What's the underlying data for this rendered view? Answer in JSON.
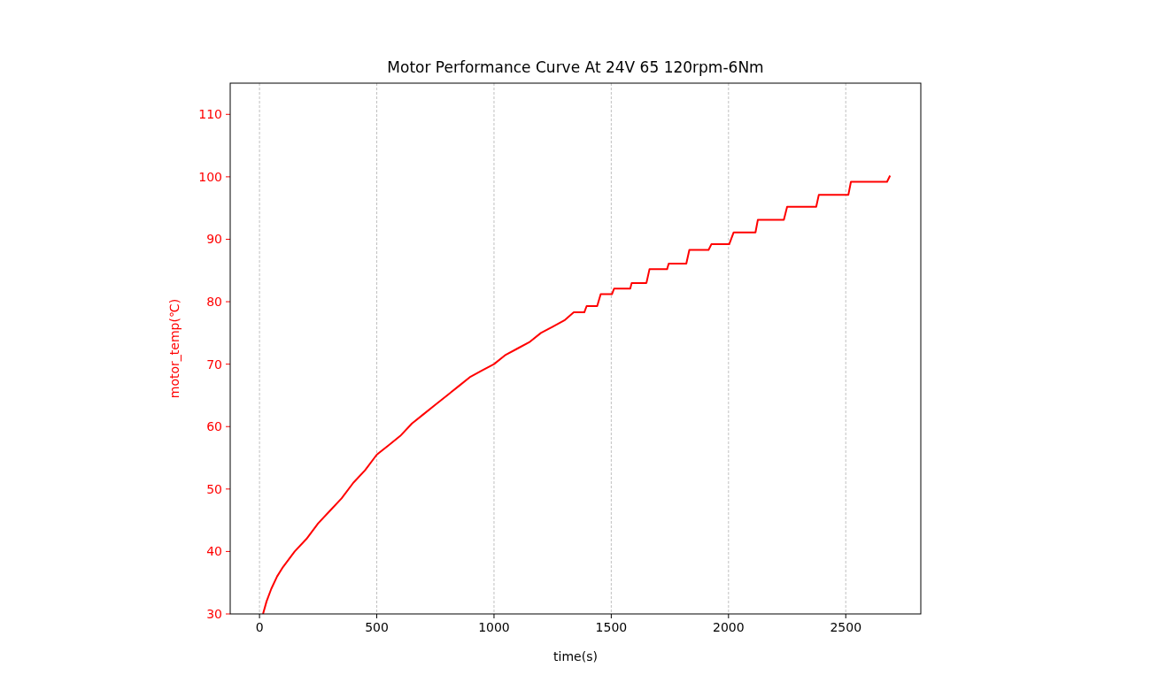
{
  "chart_data": {
    "type": "line",
    "title": "Motor Performance Curve At 24V 65 120rpm-6Nm",
    "xlabel": "time(s)",
    "ylabel": "motor_temp(℃)",
    "xlim": [
      -125,
      2820
    ],
    "xticks": [
      0,
      500,
      1000,
      1500,
      2000,
      2500
    ],
    "ylim": [
      30,
      115
    ],
    "yticks": [
      30,
      40,
      50,
      60,
      70,
      80,
      90,
      100,
      110
    ],
    "grid": "x",
    "series": [
      {
        "color": "#ff0000",
        "x": [
          15,
          30,
          50,
          75,
          100,
          150,
          200,
          250,
          300,
          350,
          400,
          450,
          500,
          550,
          600,
          650,
          700,
          750,
          800,
          850,
          900,
          950,
          1000,
          1050,
          1100,
          1150,
          1200,
          1250,
          1300,
          1340,
          1385,
          1395,
          1440,
          1455,
          1503,
          1512,
          1581,
          1587,
          1650,
          1663,
          1738,
          1745,
          1820,
          1833,
          1915,
          1927,
          2003,
          2022,
          2115,
          2125,
          2236,
          2250,
          2374,
          2385,
          2511,
          2522,
          2676,
          2689
        ],
        "values": [
          30,
          32,
          34,
          36,
          37.5,
          40,
          42,
          44.5,
          46.5,
          48.5,
          51,
          53,
          55.5,
          57,
          58.5,
          60.5,
          62,
          63.5,
          65,
          66.5,
          68,
          69,
          70,
          71.5,
          72.5,
          73.5,
          75,
          76,
          77,
          78.3,
          78.3,
          79.3,
          79.3,
          81.2,
          81.2,
          82.1,
          82.1,
          83,
          83,
          85.2,
          85.2,
          86.1,
          86.1,
          88.3,
          88.3,
          89.2,
          89.2,
          91.1,
          91.1,
          93.1,
          93.1,
          95.2,
          95.2,
          97.1,
          97.1,
          99.2,
          99.2,
          100.2
        ]
      }
    ]
  }
}
